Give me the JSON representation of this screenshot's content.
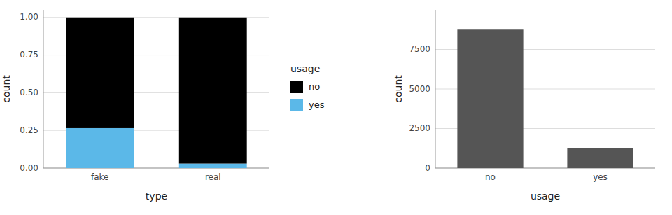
{
  "chart_data": [
    {
      "type": "bar",
      "stacked": true,
      "categories": [
        "fake",
        "real"
      ],
      "series": [
        {
          "name": "yes",
          "color": "#5bb8e8",
          "values": [
            0.265,
            0.03
          ]
        },
        {
          "name": "no",
          "color": "#000000",
          "values": [
            0.735,
            0.97
          ]
        }
      ],
      "x_label": "type",
      "y_label": "count",
      "ylim": [
        0,
        1.05
      ],
      "yticks": [
        {
          "value": 0.0,
          "label": "0.00"
        },
        0.25,
        {
          "value": 0.5,
          "label": "0.50"
        },
        0.75,
        {
          "value": 1.0,
          "label": "1.00"
        }
      ],
      "grid": true,
      "legend": "right",
      "legend_title": "usage"
    },
    {
      "type": "bar",
      "categories": [
        "no",
        "yes"
      ],
      "values": [
        8750,
        1250
      ],
      "color": "#555555",
      "x_label": "usage",
      "y_label": "count",
      "ylim": [
        0,
        10000
      ],
      "yticks": [
        0,
        2500,
        5000,
        7500
      ],
      "grid": true
    }
  ]
}
